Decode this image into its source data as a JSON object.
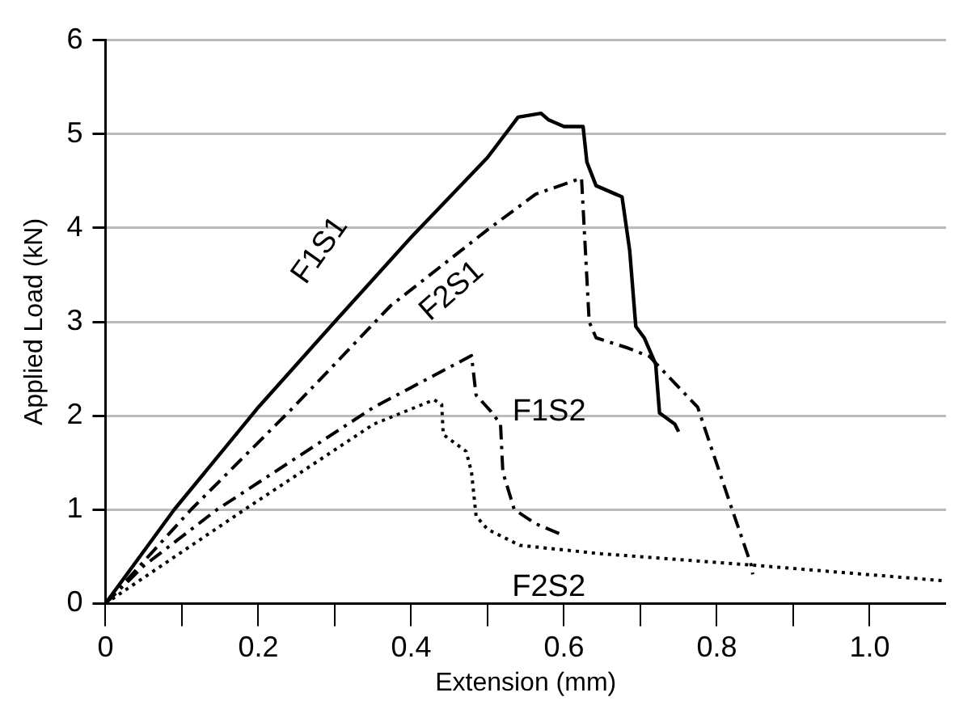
{
  "chart_data": {
    "type": "line",
    "xlabel": "Extension (mm)",
    "ylabel": "Applied Load (kN)",
    "xlim": [
      0,
      1.1
    ],
    "xticks": [
      0,
      {
        "value": 0.1,
        "label": null
      },
      0.2,
      {
        "value": 0.3,
        "label": null
      },
      0.4,
      {
        "value": 0.5,
        "label": null
      },
      0.6,
      {
        "value": 0.7,
        "label": null
      },
      0.8,
      {
        "value": 0.9,
        "label": null
      },
      {
        "value": 1,
        "label": "1.0"
      }
    ],
    "ylim": [
      0,
      6
    ],
    "yticks": [
      0,
      1,
      2,
      3,
      4,
      5,
      6
    ],
    "grid": "y",
    "legend": false,
    "marker": "none",
    "series": [
      {
        "name": "F1S1",
        "color": "#000000",
        "line_style": "solid",
        "x": [
          0,
          0.09,
          0.2,
          0.3,
          0.4,
          0.5,
          0.54,
          0.57,
          0.58,
          0.6,
          0.625,
          0.63,
          0.642,
          0.676,
          0.686,
          0.694,
          0.705,
          0.72,
          0.725,
          0.745,
          0.75
        ],
        "values": [
          0,
          1.0,
          2.09,
          3.0,
          3.9,
          4.75,
          5.18,
          5.22,
          5.15,
          5.08,
          5.08,
          4.7,
          4.45,
          4.33,
          3.76,
          2.95,
          2.83,
          2.55,
          2.03,
          1.91,
          1.83
        ]
      },
      {
        "name": "F2S1",
        "color": "#000000",
        "line_style": "dashdot",
        "x": [
          0,
          0.112,
          0.246,
          0.373,
          0.5,
          0.563,
          0.623,
          0.633,
          0.642,
          0.684,
          0.712,
          0.775,
          0.818,
          0.845,
          0.847
        ],
        "values": [
          0,
          1.0,
          2.09,
          3.17,
          3.98,
          4.36,
          4.53,
          3.0,
          2.83,
          2.72,
          2.63,
          2.09,
          1.05,
          0.41,
          0.31
        ]
      },
      {
        "name": "F1S2",
        "color": "#000000",
        "line_style": "dashdot",
        "x": [
          0,
          0.05,
          0.146,
          0.351,
          0.479,
          0.485,
          0.504,
          0.517,
          0.52,
          0.535,
          0.563,
          0.595
        ],
        "values": [
          0,
          0.4,
          1.0,
          2.09,
          2.64,
          2.22,
          2.05,
          1.91,
          1.4,
          1.0,
          0.85,
          0.74
        ]
      },
      {
        "name": "F2S2",
        "color": "#000000",
        "line_style": "dotted",
        "x": [
          0,
          0.182,
          0.351,
          0.43,
          0.44,
          0.442,
          0.472,
          0.479,
          0.485,
          0.5,
          0.542,
          0.648,
          0.845,
          1.1
        ],
        "values": [
          0,
          1.0,
          1.91,
          2.17,
          2.12,
          1.8,
          1.62,
          1.4,
          0.93,
          0.79,
          0.62,
          0.53,
          0.41,
          0.24
        ]
      }
    ]
  }
}
